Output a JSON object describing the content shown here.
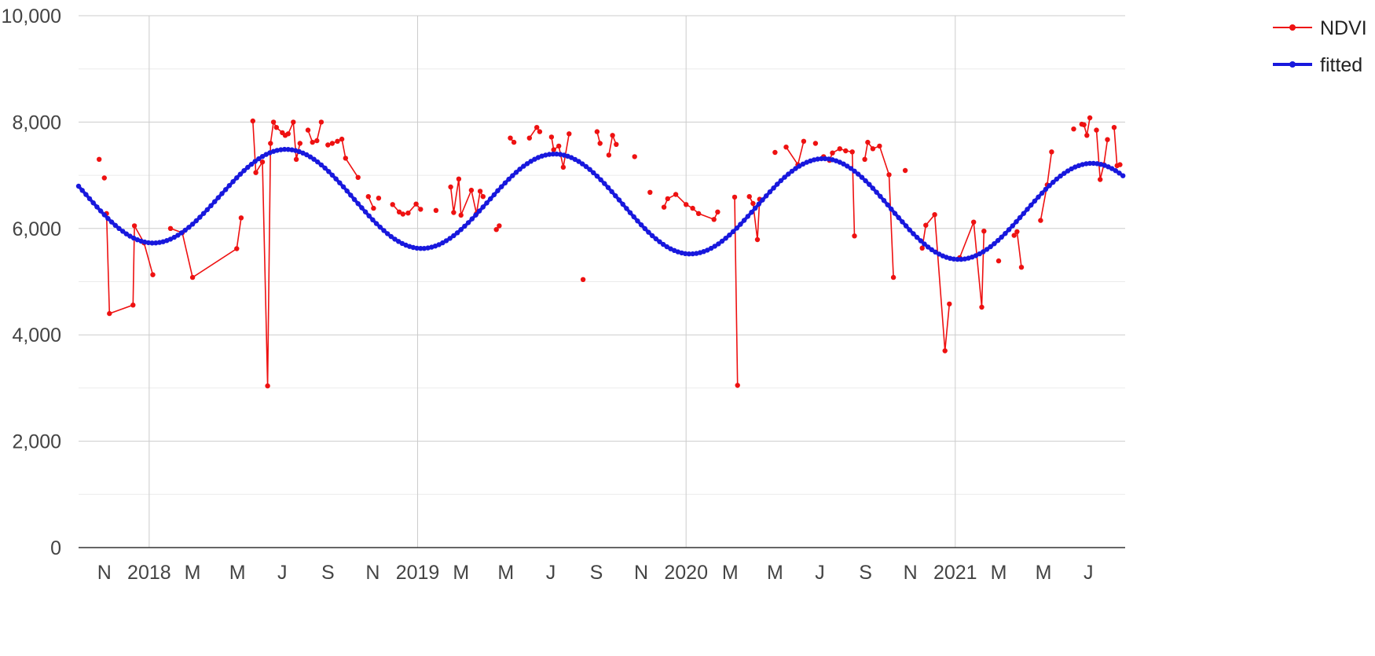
{
  "chart_data": {
    "type": "line",
    "title": "",
    "xlabel": "",
    "ylabel": "",
    "x_range": [
      "2017-09-27",
      "2021-08-20"
    ],
    "ylim": [
      0,
      10000
    ],
    "y_ticks": [
      {
        "value": 0,
        "label": "0"
      },
      {
        "value": 2000,
        "label": "2,000"
      },
      {
        "value": 4000,
        "label": "4,000"
      },
      {
        "value": 6000,
        "label": "6,000"
      },
      {
        "value": 8000,
        "label": "8,000"
      },
      {
        "value": 10000,
        "label": "10,000"
      }
    ],
    "x_ticks": [
      {
        "date": "2017-11-01",
        "label": "N"
      },
      {
        "date": "2018-01-01",
        "label": "2018"
      },
      {
        "date": "2018-03-01",
        "label": "M"
      },
      {
        "date": "2018-05-01",
        "label": "M"
      },
      {
        "date": "2018-07-01",
        "label": "J"
      },
      {
        "date": "2018-09-01",
        "label": "S"
      },
      {
        "date": "2018-11-01",
        "label": "N"
      },
      {
        "date": "2019-01-01",
        "label": "2019"
      },
      {
        "date": "2019-03-01",
        "label": "M"
      },
      {
        "date": "2019-05-01",
        "label": "M"
      },
      {
        "date": "2019-07-01",
        "label": "J"
      },
      {
        "date": "2019-09-01",
        "label": "S"
      },
      {
        "date": "2019-11-01",
        "label": "N"
      },
      {
        "date": "2020-01-01",
        "label": "2020"
      },
      {
        "date": "2020-03-01",
        "label": "M"
      },
      {
        "date": "2020-05-01",
        "label": "M"
      },
      {
        "date": "2020-07-01",
        "label": "J"
      },
      {
        "date": "2020-09-01",
        "label": "S"
      },
      {
        "date": "2020-11-01",
        "label": "N"
      },
      {
        "date": "2021-01-01",
        "label": "2021"
      },
      {
        "date": "2021-03-01",
        "label": "M"
      },
      {
        "date": "2021-05-01",
        "label": "M"
      },
      {
        "date": "2021-07-01",
        "label": "J"
      }
    ],
    "grid": true,
    "legend_position": "right",
    "series": [
      {
        "name": "NDVI",
        "color": "#ee1111",
        "segments": [
          [
            [
              "2017-10-25",
              7300
            ]
          ],
          [
            [
              "2017-11-01",
              6950
            ]
          ],
          [
            [
              "2017-11-04",
              6280
            ],
            [
              "2017-11-08",
              4400
            ],
            [
              "2017-12-10",
              4560
            ],
            [
              "2017-12-12",
              6050
            ],
            [
              "2017-12-25",
              5730
            ],
            [
              "2018-01-06",
              5130
            ]
          ],
          [
            [
              "2018-01-30",
              6000
            ],
            [
              "2018-02-15",
              5920
            ],
            [
              "2018-03-01",
              5080
            ],
            [
              "2018-04-30",
              5620
            ],
            [
              "2018-05-06",
              6200
            ]
          ],
          [
            [
              "2018-05-22",
              8020
            ],
            [
              "2018-05-26",
              7050
            ],
            [
              "2018-06-04",
              7250
            ],
            [
              "2018-06-11",
              3040
            ],
            [
              "2018-06-15",
              7600
            ],
            [
              "2018-06-19",
              8000
            ],
            [
              "2018-06-23",
              7900
            ],
            [
              "2018-07-01",
              7800
            ],
            [
              "2018-07-05",
              7750
            ],
            [
              "2018-07-09",
              7780
            ],
            [
              "2018-07-16",
              8000
            ],
            [
              "2018-07-20",
              7300
            ],
            [
              "2018-07-25",
              7600
            ]
          ],
          [
            [
              "2018-08-05",
              7850
            ],
            [
              "2018-08-11",
              7620
            ],
            [
              "2018-08-17",
              7650
            ],
            [
              "2018-08-23",
              8000
            ]
          ],
          [
            [
              "2018-09-01",
              7570
            ],
            [
              "2018-09-07",
              7600
            ],
            [
              "2018-09-14",
              7640
            ],
            [
              "2018-09-20",
              7680
            ],
            [
              "2018-09-25",
              7320
            ],
            [
              "2018-10-12",
              6960
            ]
          ],
          [
            [
              "2018-10-26",
              6600
            ],
            [
              "2018-11-02",
              6380
            ]
          ],
          [
            [
              "2018-11-09",
              6570
            ]
          ],
          [
            [
              "2018-11-28",
              6450
            ],
            [
              "2018-12-07",
              6310
            ],
            [
              "2018-12-12",
              6270
            ],
            [
              "2018-12-19",
              6290
            ],
            [
              "2018-12-30",
              6460
            ],
            [
              "2019-01-05",
              6360
            ]
          ],
          [
            [
              "2019-01-26",
              6340
            ]
          ],
          [
            [
              "2019-02-15",
              6780
            ],
            [
              "2019-02-19",
              6300
            ],
            [
              "2019-02-26",
              6930
            ],
            [
              "2019-03-01",
              6250
            ],
            [
              "2019-03-15",
              6720
            ],
            [
              "2019-03-22",
              6280
            ],
            [
              "2019-03-27",
              6700
            ],
            [
              "2019-03-31",
              6600
            ]
          ],
          [
            [
              "2019-04-18",
              5980
            ],
            [
              "2019-04-22",
              6050
            ]
          ],
          [
            [
              "2019-05-07",
              7700
            ],
            [
              "2019-05-12",
              7620
            ]
          ],
          [
            [
              "2019-06-02",
              7700
            ],
            [
              "2019-06-12",
              7900
            ],
            [
              "2019-06-16",
              7820
            ]
          ],
          [
            [
              "2019-07-02",
              7720
            ],
            [
              "2019-07-05",
              7480
            ],
            [
              "2019-07-12",
              7550
            ],
            [
              "2019-07-18",
              7150
            ],
            [
              "2019-07-26",
              7780
            ]
          ],
          [
            [
              "2019-08-14",
              5040
            ]
          ],
          [
            [
              "2019-09-02",
              7820
            ],
            [
              "2019-09-06",
              7600
            ]
          ],
          [
            [
              "2019-09-18",
              7380
            ],
            [
              "2019-09-23",
              7750
            ],
            [
              "2019-09-28",
              7580
            ]
          ],
          [
            [
              "2019-10-23",
              7350
            ]
          ],
          [
            [
              "2019-11-13",
              6680
            ]
          ],
          [
            [
              "2019-12-02",
              6400
            ],
            [
              "2019-12-07",
              6560
            ],
            [
              "2019-12-18",
              6640
            ],
            [
              "2020-01-01",
              6450
            ],
            [
              "2020-01-10",
              6380
            ],
            [
              "2020-01-18",
              6280
            ],
            [
              "2020-02-08",
              6170
            ],
            [
              "2020-02-13",
              6310
            ]
          ],
          [
            [
              "2020-03-07",
              6590
            ],
            [
              "2020-03-11",
              3050
            ]
          ],
          [
            [
              "2020-03-27",
              6600
            ],
            [
              "2020-04-01",
              6470
            ],
            [
              "2020-04-07",
              5790
            ],
            [
              "2020-04-10",
              6550
            ]
          ],
          [
            [
              "2020-05-01",
              7430
            ]
          ],
          [
            [
              "2020-05-16",
              7530
            ],
            [
              "2020-06-01",
              7200
            ],
            [
              "2020-06-09",
              7640
            ]
          ],
          [
            [
              "2020-06-25",
              7600
            ]
          ],
          [
            [
              "2020-07-06",
              7350
            ],
            [
              "2020-07-14",
              7280
            ],
            [
              "2020-07-18",
              7420
            ],
            [
              "2020-07-28",
              7500
            ],
            [
              "2020-08-05",
              7460
            ],
            [
              "2020-08-14",
              7440
            ],
            [
              "2020-08-17",
              5860
            ]
          ],
          [
            [
              "2020-08-31",
              7300
            ],
            [
              "2020-09-04",
              7620
            ],
            [
              "2020-09-11",
              7500
            ],
            [
              "2020-09-20",
              7550
            ],
            [
              "2020-10-03",
              7010
            ],
            [
              "2020-10-09",
              5080
            ]
          ],
          [
            [
              "2020-10-25",
              7090
            ]
          ],
          [
            [
              "2020-11-17",
              5630
            ],
            [
              "2020-11-22",
              6060
            ],
            [
              "2020-12-04",
              6260
            ],
            [
              "2020-12-18",
              3700
            ],
            [
              "2020-12-24",
              4580
            ]
          ],
          [
            [
              "2021-01-07",
              5450
            ],
            [
              "2021-01-26",
              6120
            ],
            [
              "2021-02-06",
              4520
            ],
            [
              "2021-02-09",
              5950
            ]
          ],
          [
            [
              "2021-03-01",
              5390
            ]
          ],
          [
            [
              "2021-03-22",
              5870
            ],
            [
              "2021-03-26",
              5940
            ],
            [
              "2021-04-01",
              5270
            ]
          ],
          [
            [
              "2021-04-27",
              6150
            ],
            [
              "2021-05-06",
              6820
            ],
            [
              "2021-05-12",
              7440
            ]
          ],
          [
            [
              "2021-06-11",
              7870
            ]
          ],
          [
            [
              "2021-06-22",
              7960
            ],
            [
              "2021-06-25",
              7950
            ],
            [
              "2021-06-29",
              7750
            ],
            [
              "2021-07-03",
              8080
            ]
          ],
          [
            [
              "2021-07-12",
              7850
            ],
            [
              "2021-07-17",
              6920
            ],
            [
              "2021-07-22",
              7200
            ],
            [
              "2021-07-27",
              7670
            ]
          ],
          [
            [
              "2021-08-05",
              7900
            ],
            [
              "2021-08-09",
              7180
            ],
            [
              "2021-08-13",
              7200
            ]
          ]
        ]
      },
      {
        "name": "fitted",
        "color": "#1818dd",
        "mean": 6655,
        "trend_per_year": -95,
        "trend_origin": "2017-09-27",
        "amplitude_start": 900,
        "amplitude_end": 930,
        "peak_date": "2018-07-07",
        "period_days": 365.25,
        "sample_every_days": 5
      }
    ]
  }
}
